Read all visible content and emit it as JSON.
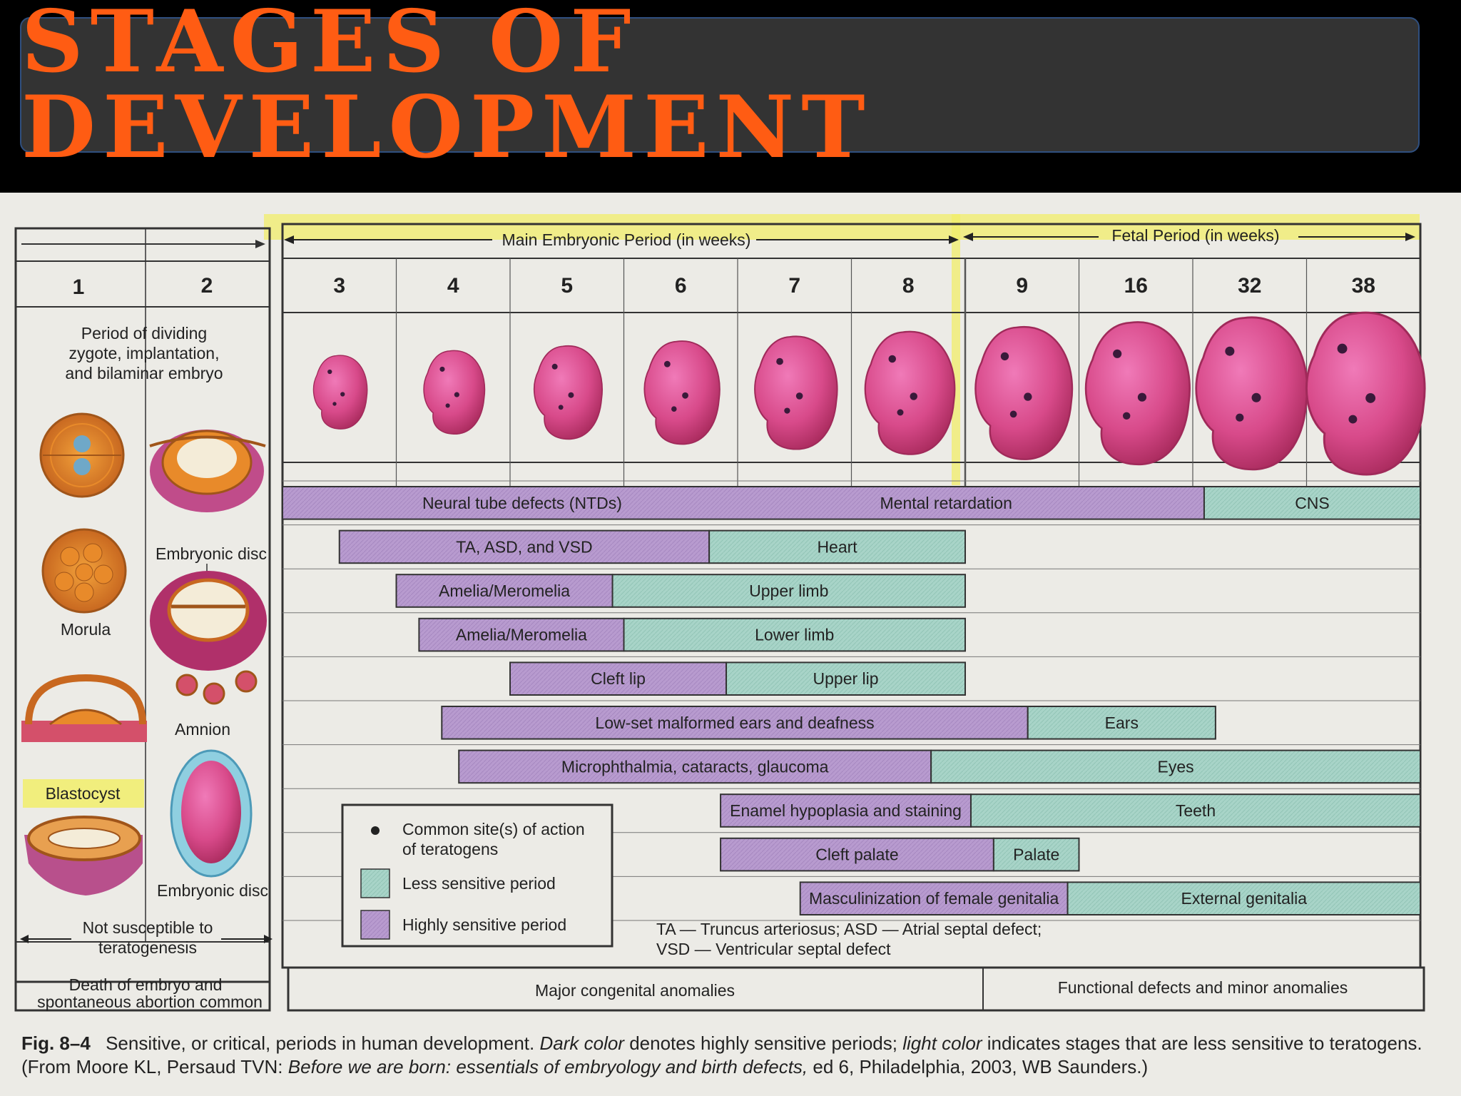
{
  "title": "STAGES OF DEVELOPMENT",
  "periods": {
    "main": "Main Embryonic Period (in weeks)",
    "fetal": "Fetal Period (in weeks)"
  },
  "weeks": {
    "early": [
      "1",
      "2"
    ],
    "main": [
      "3",
      "4",
      "5",
      "6",
      "7",
      "8",
      "9",
      "16",
      "32",
      "38"
    ]
  },
  "left_panel": {
    "period_text": [
      "Period of dividing",
      "zygote, implantation,",
      "and bilaminar embryo"
    ],
    "embryonic_disc_1": "Embryonic disc",
    "morula": "Morula",
    "amnion": "Amnion",
    "blastocyst": "Blastocyst",
    "embryonic_disc_2": "Embryonic disc",
    "not_susceptible": [
      "Not susceptible to",
      "teratogenesis"
    ],
    "death": [
      "Death of embryo and",
      "spontaneous abortion common"
    ]
  },
  "colors": {
    "highly_sensitive": "#b89bcf",
    "less_sensitive": "#a8d4c8",
    "title": "#ff5c13",
    "highlight": "#f2ee6a"
  },
  "bars": [
    {
      "high_label": "Neural tube defects (NTDs)",
      "mid_label": "Mental retardation",
      "low_label": "CNS",
      "start": 0,
      "high_end": 8.1,
      "end": 10
    },
    {
      "high_label": "TA, ASD, and VSD",
      "low_label": "Heart",
      "start": 0.5,
      "high_end": 3.75,
      "end": 6
    },
    {
      "high_label": "Amelia/Meromelia",
      "low_label": "Upper limb",
      "start": 1.0,
      "high_end": 2.9,
      "end": 6
    },
    {
      "high_label": "Amelia/Meromelia",
      "low_label": "Lower limb",
      "start": 1.2,
      "high_end": 3.0,
      "end": 6
    },
    {
      "high_label": "Cleft lip",
      "low_label": "Upper lip",
      "start": 2.0,
      "high_end": 3.9,
      "end": 6
    },
    {
      "high_label": "Low-set malformed ears and deafness",
      "low_label": "Ears",
      "start": 1.4,
      "high_end": 6.55,
      "end": 8.2
    },
    {
      "high_label": "Microphthalmia, cataracts, glaucoma",
      "low_label": "Eyes",
      "start": 1.55,
      "high_end": 5.7,
      "end": 10
    },
    {
      "high_label": "Enamel hypoplasia and staining",
      "low_label": "Teeth",
      "start": 3.85,
      "high_end": 6.05,
      "end": 10
    },
    {
      "high_label": "Cleft palate",
      "low_label": "Palate",
      "start": 3.85,
      "high_end": 6.25,
      "end": 7.0
    },
    {
      "high_label": "Masculinization of female genitalia",
      "low_label": "External genitalia",
      "start": 4.55,
      "high_end": 6.9,
      "end": 10
    }
  ],
  "legend": {
    "dot": [
      "Common site(s) of action",
      "of teratogens"
    ],
    "less": "Less sensitive period",
    "high": "Highly sensitive period"
  },
  "abbrev": [
    "TA — Truncus arteriosus; ASD — Atrial septal defect;",
    "VSD — Ventricular septal defect"
  ],
  "bottom": {
    "major": "Major congenital anomalies",
    "functional": "Functional defects and minor anomalies"
  },
  "caption": {
    "fig": "Fig. 8–4",
    "text1": "Sensitive, or critical, periods in human development.",
    "dark": "Dark color",
    "text2": "denotes highly sensitive periods;",
    "light": "light color",
    "text3": "indicates stages that are less sensitive to teratogens. (From Moore KL, Persaud TVN:",
    "book": "Before we are born: essentials of embryology and birth defects,",
    "text4": "ed 6, Philadelphia, 2003, WB Saunders.)"
  }
}
